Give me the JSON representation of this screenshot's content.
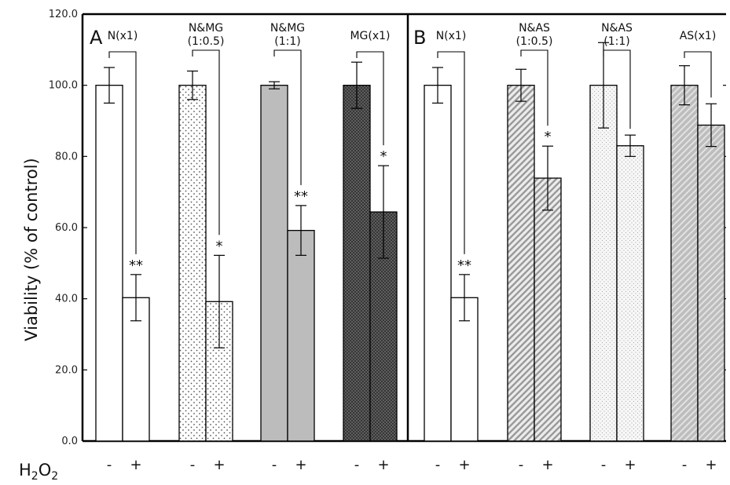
{
  "chart_data": {
    "type": "bar",
    "ylabel": "Viability (% of control)",
    "ylim": [
      0,
      120
    ],
    "yticks": [
      "0.0",
      "20.0",
      "40.0",
      "60.0",
      "80.0",
      "100.0",
      "120.0"
    ],
    "xlabel_prefix": "H",
    "xlabel_sub1": "2",
    "xlabel_mid": "O",
    "xlabel_sub2": "2",
    "treatment_labels": [
      "-",
      "+"
    ],
    "panels": [
      {
        "letter": "A",
        "groups": [
          {
            "label": [
              "N(x1)"
            ],
            "pattern": "white",
            "values": [
              100,
              40.3
            ],
            "errors": [
              5,
              6.5
            ],
            "sig": "**"
          },
          {
            "label": [
              "N&MG",
              "(1:0.5)"
            ],
            "pattern": "dots",
            "values": [
              100,
              39.2
            ],
            "errors": [
              4,
              13
            ],
            "sig": "*"
          },
          {
            "label": [
              "N&MG",
              "(1:1)"
            ],
            "pattern": "gray",
            "values": [
              100,
              59.2
            ],
            "errors": [
              1,
              7
            ],
            "sig": "**"
          },
          {
            "label": [
              "MG(x1)"
            ],
            "pattern": "darkcross",
            "values": [
              100,
              64.4
            ],
            "errors": [
              6.5,
              13
            ],
            "sig": "*"
          }
        ]
      },
      {
        "letter": "B",
        "groups": [
          {
            "label": [
              "N(x1)"
            ],
            "pattern": "white",
            "values": [
              100,
              40.3
            ],
            "errors": [
              5,
              6.5
            ],
            "sig": "**"
          },
          {
            "label": [
              "N&AS",
              "(1:0.5)"
            ],
            "pattern": "diag",
            "values": [
              100,
              73.9
            ],
            "errors": [
              4.5,
              9
            ],
            "sig": "*"
          },
          {
            "label": [
              "N&AS",
              "(1:1)"
            ],
            "pattern": "lightdots",
            "values": [
              100,
              83.0
            ],
            "errors": [
              12,
              3
            ],
            "sig": ""
          },
          {
            "label": [
              "AS(x1)"
            ],
            "pattern": "diag2",
            "values": [
              100,
              88.8
            ],
            "errors": [
              5.5,
              6
            ],
            "sig": ""
          }
        ]
      }
    ]
  }
}
